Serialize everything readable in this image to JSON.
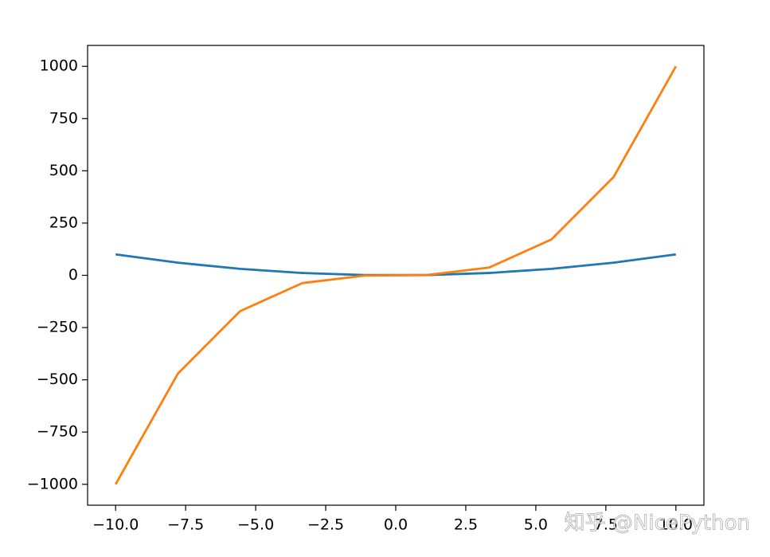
{
  "chart_data": {
    "type": "line",
    "x": [
      -10,
      -7.778,
      -5.556,
      -3.333,
      -1.111,
      1.111,
      3.333,
      5.556,
      7.778,
      10
    ],
    "series": [
      {
        "color": "#1f77b4",
        "values": [
          100,
          60.49,
          30.86,
          11.11,
          1.23,
          1.23,
          11.11,
          30.86,
          60.49,
          100
        ]
      },
      {
        "color": "#ff7f0e",
        "values": [
          -1000,
          -470.5,
          -171.5,
          -37.04,
          -1.37,
          1.37,
          37.04,
          171.5,
          470.5,
          1000
        ]
      }
    ],
    "xlim": [
      -11,
      11
    ],
    "xticks": [
      {
        "value": -10,
        "label": "−10.0"
      },
      {
        "value": -7.5,
        "label": "−7.5"
      },
      {
        "value": -5,
        "label": "−5.0"
      },
      {
        "value": -2.5,
        "label": "−2.5"
      },
      {
        "value": 0,
        "label": "0.0"
      },
      {
        "value": 2.5,
        "label": "2.5"
      },
      {
        "value": 5,
        "label": "5.0"
      },
      {
        "value": 7.5,
        "label": "7.5"
      },
      {
        "value": 10,
        "label": "10.0"
      }
    ],
    "ylim": [
      -1100,
      1100
    ],
    "yticks": [
      {
        "value": -1000,
        "label": "−1000"
      },
      {
        "value": -750,
        "label": "−750"
      },
      {
        "value": -500,
        "label": "−500"
      },
      {
        "value": -250,
        "label": "−250"
      },
      0,
      250,
      500,
      750,
      1000
    ],
    "grid": false,
    "annotations": [
      "知乎 @NicePython"
    ]
  }
}
